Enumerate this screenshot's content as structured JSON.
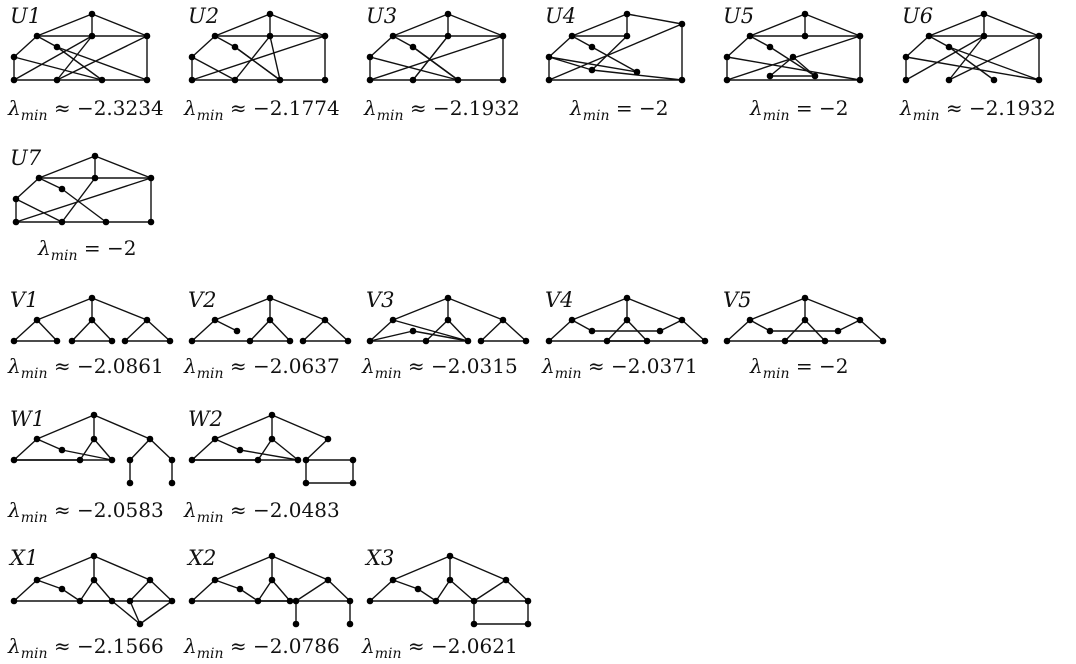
{
  "graphs": [
    {
      "name": "U1",
      "rel": "≈",
      "value": "−2.3234"
    },
    {
      "name": "U2",
      "rel": "≈",
      "value": "−2.1774"
    },
    {
      "name": "U3",
      "rel": "≈",
      "value": "−2.1932"
    },
    {
      "name": "U4",
      "rel": "=",
      "value": "−2"
    },
    {
      "name": "U5",
      "rel": "=",
      "value": "−2"
    },
    {
      "name": "U6",
      "rel": "≈",
      "value": "−2.1932"
    },
    {
      "name": "U7",
      "rel": "=",
      "value": "−2"
    },
    {
      "name": "V1",
      "rel": "≈",
      "value": "−2.0861"
    },
    {
      "name": "V2",
      "rel": "≈",
      "value": "−2.0637"
    },
    {
      "name": "V3",
      "rel": "≈",
      "value": "−2.0315"
    },
    {
      "name": "V4",
      "rel": "≈",
      "value": "−2.0371"
    },
    {
      "name": "V5",
      "rel": "=",
      "value": "−2"
    },
    {
      "name": "W1",
      "rel": "≈",
      "value": "−2.0583"
    },
    {
      "name": "W2",
      "rel": "≈",
      "value": "−2.0483"
    },
    {
      "name": "X1",
      "rel": "≈",
      "value": "−2.1566"
    },
    {
      "name": "X2",
      "rel": "≈",
      "value": "−2.0786"
    },
    {
      "name": "X3",
      "rel": "≈",
      "value": "−2.0621"
    }
  ],
  "lambda_symbol": "λ",
  "lambda_subscript": "min"
}
